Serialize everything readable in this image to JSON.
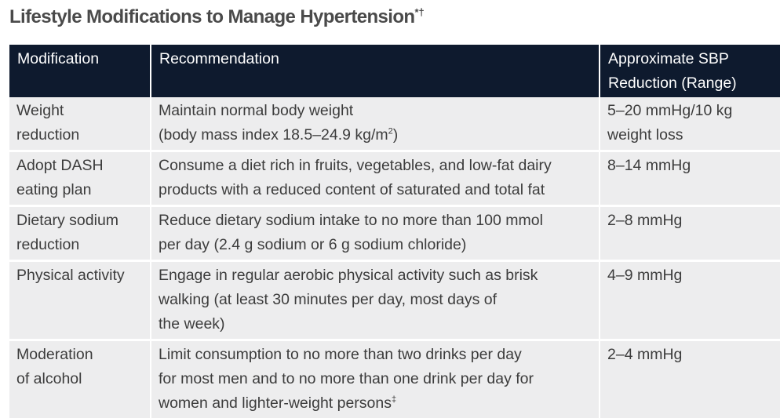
{
  "title": {
    "text": "Lifestyle Modifications to Manage Hypertension",
    "marks": "*†"
  },
  "table": {
    "headers": {
      "modification": "Modification",
      "recommendation": "Recommendation",
      "sbp_line1": "Approximate SBP",
      "sbp_line2": "Reduction (Range)"
    },
    "rows": [
      {
        "modification": [
          "Weight",
          "reduction"
        ],
        "recommendation": [
          "Maintain normal body weight",
          "(body mass index 18.5–24.9 kg/m",
          "2",
          ")"
        ],
        "sbp": [
          "5–20 mmHg/10 kg",
          "weight loss"
        ]
      },
      {
        "modification": [
          "Adopt DASH",
          "eating plan"
        ],
        "recommendation": [
          "Consume a diet rich in fruits, vegetables, and low-fat dairy",
          "products with a reduced content of saturated and total fat"
        ],
        "sbp": [
          "8–14 mmHg"
        ]
      },
      {
        "modification": [
          "Dietary sodium",
          "reduction"
        ],
        "recommendation": [
          "Reduce dietary sodium intake to no more than 100 mmol",
          "per day (2.4 g sodium or 6 g sodium chloride)"
        ],
        "sbp": [
          "2–8 mmHg"
        ]
      },
      {
        "modification": [
          "Physical activity"
        ],
        "recommendation": [
          "Engage in regular aerobic physical activity such as brisk",
          "walking (at least 30 minutes per day, most days of",
          "the week)"
        ],
        "sbp": [
          "4–9 mmHg"
        ]
      },
      {
        "modification": [
          "Moderation",
          "of alcohol"
        ],
        "recommendation": [
          "Limit consumption to no more than two drinks per day",
          "for most men and to no more than one drink per day for",
          "women and lighter-weight persons",
          "‡"
        ],
        "sbp": [
          "2–4 mmHg"
        ]
      }
    ]
  }
}
